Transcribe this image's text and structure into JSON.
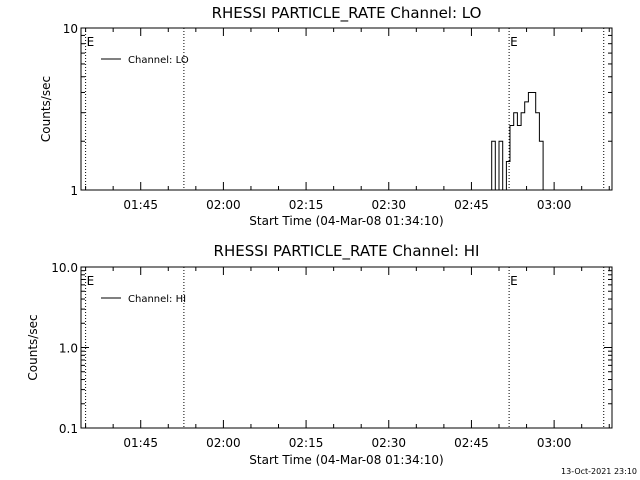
{
  "footer_timestamp": "13-Oct-2021 23:10",
  "chart_data": [
    {
      "type": "line",
      "title": "RHESSI PARTICLE_RATE Channel: LO",
      "xlabel": "Start Time (04-Mar-08 01:34:10)",
      "ylabel": "Counts/sec",
      "yscale": "log",
      "ylim": [
        1,
        10
      ],
      "yticks": [
        1,
        10
      ],
      "ytick_labels": [
        "1",
        "10"
      ],
      "xlim": [
        "01:34:10",
        "03:10:30"
      ],
      "xticks": [
        "01:45",
        "02:00",
        "02:15",
        "02:30",
        "02:45",
        "03:00"
      ],
      "markers": [
        {
          "time": "01:35:00",
          "label": "E"
        },
        {
          "time": "01:52:50",
          "label": ""
        },
        {
          "time": "02:51:50",
          "label": "E"
        },
        {
          "time": "03:09:00",
          "label": ""
        }
      ],
      "legend": {
        "position": "top-left",
        "entries": [
          "Channel: LO"
        ]
      },
      "series": [
        {
          "name": "Channel: LO",
          "points": [
            [
              "02:48:40",
              1
            ],
            [
              "02:48:40",
              2
            ],
            [
              "02:49:20",
              2
            ],
            [
              "02:49:20",
              1
            ],
            [
              "02:50:00",
              1
            ],
            [
              "02:50:00",
              2
            ],
            [
              "02:50:40",
              2
            ],
            [
              "02:50:40",
              1
            ],
            [
              "02:51:20",
              1
            ],
            [
              "02:51:20",
              1.5
            ],
            [
              "02:52:00",
              1.5
            ],
            [
              "02:52:00",
              2.5
            ],
            [
              "02:52:40",
              2.5
            ],
            [
              "02:52:40",
              3
            ],
            [
              "02:53:20",
              3
            ],
            [
              "02:53:20",
              2.5
            ],
            [
              "02:54:00",
              2.5
            ],
            [
              "02:54:00",
              3
            ],
            [
              "02:54:40",
              3
            ],
            [
              "02:54:40",
              3.5
            ],
            [
              "02:55:20",
              3.5
            ],
            [
              "02:55:20",
              4
            ],
            [
              "02:56:40",
              4
            ],
            [
              "02:56:40",
              3
            ],
            [
              "02:57:20",
              3
            ],
            [
              "02:57:20",
              2
            ],
            [
              "02:58:00",
              2
            ],
            [
              "02:58:00",
              1
            ]
          ]
        }
      ]
    },
    {
      "type": "line",
      "title": "RHESSI PARTICLE_RATE Channel: HI",
      "xlabel": "Start Time (04-Mar-08 01:34:10)",
      "ylabel": "Counts/sec",
      "yscale": "log",
      "ylim": [
        0.1,
        10
      ],
      "yticks": [
        0.1,
        1,
        10
      ],
      "ytick_labels": [
        "0.1",
        "1.0",
        "10.0"
      ],
      "xlim": [
        "01:34:10",
        "03:10:30"
      ],
      "xticks": [
        "01:45",
        "02:00",
        "02:15",
        "02:30",
        "02:45",
        "03:00"
      ],
      "markers": [
        {
          "time": "01:35:00",
          "label": "E"
        },
        {
          "time": "01:52:50",
          "label": ""
        },
        {
          "time": "02:51:50",
          "label": "E"
        },
        {
          "time": "03:09:00",
          "label": ""
        }
      ],
      "legend": {
        "position": "top-left",
        "entries": [
          "Channel: HI"
        ]
      },
      "series": [
        {
          "name": "Channel: HI",
          "points": []
        }
      ]
    }
  ]
}
